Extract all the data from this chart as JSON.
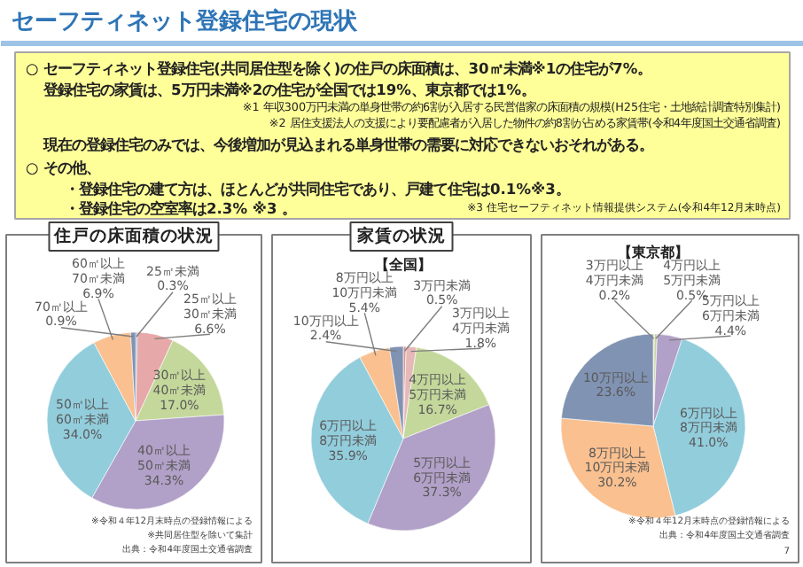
{
  "chart_data": [
    {
      "type": "other",
      "title": "セーフティネット登録住宅の現状",
      "annotations": [
        "○ セーフティネット登録住宅(共同居住型を除く)の住戸の床面積は、30㎡未満※1の住宅が7%。",
        "登録住宅の家賃は、5万円未満※2の住宅が全国では19%、東京都では1%。",
        "※1 年収300万円未満の単身世帯の約6割が入居する民営借家の床面積の規模(H25住宅・土地統計調査特別集計)",
        "※2 居住支援法人の支援により要配慮者が入居した物件の約8割が占める家賃帯(令和4年度国土交通省調査)",
        "現在の登録住宅のみでは、今後増加が見込まれる単身世帯の需要に対応できないおそれがある。",
        "○ その他、",
        "・登録住宅の建て方は、ほとんどが共同住宅であり、戸建て住宅は0.1%※3。",
        "・登録住宅の空室率は2.3% ※3 。",
        "※3 住宅セーフティネット情報提供システム(令和4年12月末時点)"
      ]
    },
    {
      "type": "pie",
      "title": "住戸の床面積の状況",
      "categories": [
        "25㎡未満",
        "25㎡以上\n30㎡未満",
        "30㎡以上\n40㎡未満",
        "40㎡以上\n50㎡未満",
        "50㎡以上\n60㎡未満",
        "60㎡以上\n70㎡未満",
        "70㎡以上"
      ],
      "values": [
        0.3,
        6.6,
        17.0,
        34.3,
        34.0,
        6.9,
        0.9
      ],
      "value_labels": [
        "0.3%",
        "6.6%",
        "17.0%",
        "34.3%",
        "34.0%",
        "6.9%",
        "0.9%"
      ],
      "colors": [
        "#558ed5",
        "#e6a8a8",
        "#c4d89b",
        "#b1a0c7",
        "#92cddc",
        "#fac08f",
        "#8093b3"
      ],
      "annotations": [
        "※令和４年12月末時点の登録情報による",
        "※共同居住型を除いて集計",
        "出典：令和4年度国土交通省調査"
      ]
    },
    {
      "type": "pie",
      "title": "家賃の状況",
      "subtitle": "【全国】",
      "categories": [
        "3万円未満",
        "3万円以上\n4万円未満",
        "4万円以上\n5万円未満",
        "5万円以上\n6万円未満",
        "6万円以上\n8万円未満",
        "8万円以上\n10万円未満",
        "10万円以上"
      ],
      "values": [
        0.5,
        1.8,
        16.7,
        37.3,
        35.9,
        5.4,
        2.4
      ],
      "value_labels": [
        "0.5%",
        "1.8%",
        "16.7%",
        "37.3%",
        "35.9%",
        "5.4%",
        "2.4%"
      ],
      "colors": [
        "#d99694",
        "#e6b9b8",
        "#c4d89b",
        "#b1a0c7",
        "#92cddc",
        "#fac08f",
        "#8093b3"
      ]
    },
    {
      "type": "pie",
      "subtitle": "【東京都】",
      "categories": [
        "3万円以上\n4万円未満",
        "4万円以上\n5万円未満",
        "5万円以上\n6万円未満",
        "6万円以上\n8万円未満",
        "8万円以上\n10万円未満",
        "10万円以上"
      ],
      "values": [
        0.2,
        0.5,
        4.4,
        41.0,
        30.2,
        23.6
      ],
      "value_labels": [
        "0.2%",
        "0.5%",
        "4.4%",
        "41.0%",
        "30.2%",
        "23.6%"
      ],
      "colors": [
        "#e6b9b8",
        "#c4d89b",
        "#b1a0c7",
        "#92cddc",
        "#fac08f",
        "#8093b3"
      ],
      "annotations": [
        "※令和４年12月末時点の登録情報による",
        "出典：令和4年度国土交通省調査",
        "7"
      ]
    }
  ]
}
